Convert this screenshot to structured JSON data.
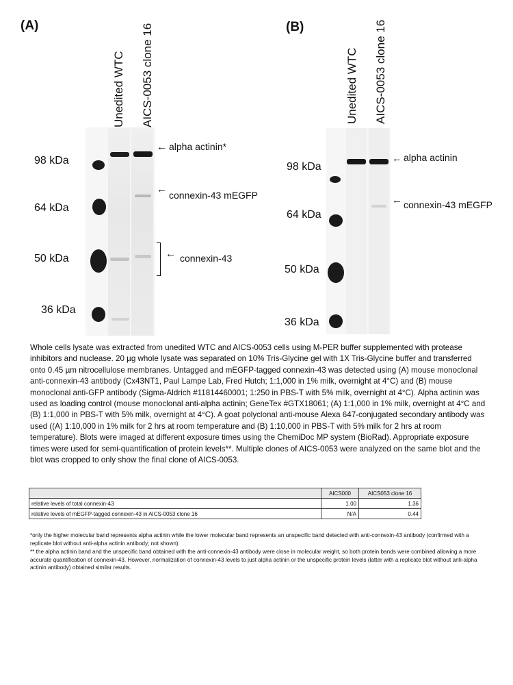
{
  "panel_a": {
    "label": "(A)",
    "lanes": [
      "Unedited WTC",
      "AICS-0053 clone 16"
    ],
    "markers": [
      "98 kDa",
      "64 kDa",
      "50 kDa",
      "36 kDa"
    ],
    "annotations": {
      "alpha_actinin": "alpha actinin*",
      "mEGFP": "connexin-43 mEGFP",
      "cx43": "connexin-43"
    }
  },
  "panel_b": {
    "label": "(B)",
    "lanes": [
      "Unedited WTC",
      "AICS-0053 clone 16"
    ],
    "markers": [
      "98 kDa",
      "64 kDa",
      "50 kDa",
      "36 kDa"
    ],
    "annotations": {
      "alpha_actinin": "alpha actinin",
      "mEGFP": "connexin-43 mEGFP"
    }
  },
  "arrow_glyph": "←",
  "methods": "Whole cells lysate was extracted from unedited WTC and AICS-0053 cells using M-PER buffer supplemented with protease inhibitors and nuclease. 20 µg whole lysate was separated on 10% Tris-Glycine gel with 1X Tris-Glycine buffer and transferred onto 0.45 µm nitrocellulose membranes. Untagged and mEGFP-tagged connexin-43 was detected using (A) mouse monoclonal anti-connexin-43 antibody (Cx43NT1, Paul Lampe Lab, Fred Hutch; 1:1,000 in 1% milk, overnight at 4°C) and (B) mouse monoclonal anti-GFP antibody (Sigma-Aldrich #11814460001; 1:250 in PBS-T with 5% milk, overnight at 4°C). Alpha actinin was used as loading control (mouse monoclonal anti-alpha actinin; GeneTex #GTX18061; (A) 1:1,000 in 1% milk, overnight at 4°C and (B) 1:1,000 in PBS-T with 5% milk, overnight at 4°C). A goat polyclonal anti-mouse Alexa 647-conjugated secondary antibody was used ((A) 1:10,000 in 1% milk for 2 hrs at room temperature and (B) 1:10,000 in PBS-T with 5% milk for 2 hrs at room temperature). Blots were imaged at different exposure times using the ChemiDoc MP system (BioRad). Appropriate exposure times were used for semi-quantification of protein levels**. Multiple clones of AICS-0053 were analyzed on the same blot and the blot was cropped to only show the final clone of AICS-0053.",
  "table": {
    "headers": [
      "",
      "AICS000",
      "AICS053 clone 16"
    ],
    "rows": [
      [
        "relative levels of total connexin-43",
        "1.00",
        "1.36"
      ],
      [
        "relative levels of mEGFP-tagged connexin-43 in AICS-0053 clone 16",
        "N/A",
        "0.44"
      ]
    ]
  },
  "footnotes": [
    "*only the higher molecular band represents alpha actinin while the lower molecular band represents an unspecific band detected with anti-connexin-43 antibody (confirmed with a replicate blot without anti-alpha actinin antibody; not shown)",
    "** the alpha actinin band and the unspecific band obtained with the anti-connexin-43 antibody were close in molecular weight, so both protein bands were combined allowing a more accurate quantification of connexin-43. However, normalization of connexin-43 levels to just alpha actinin or the unspecific protein levels  (latter with a replicate blot without anti-alpha actinin antibody) obtained similar results."
  ]
}
